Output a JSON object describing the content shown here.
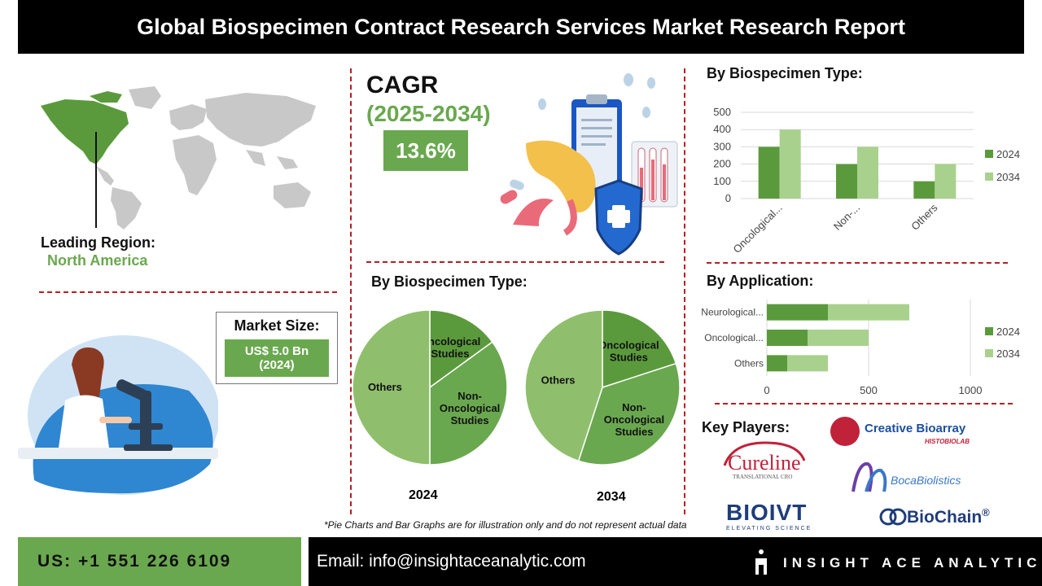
{
  "header": {
    "title": "Global Biospecimen Contract Research Services Market Research Report"
  },
  "region": {
    "label": "Leading Region:",
    "value": "North America"
  },
  "cagr": {
    "title": "CAGR",
    "years": "(2025-2034)",
    "value": "13.6%"
  },
  "market_size": {
    "title": "Market Size:",
    "value_line1": "US$ 5.0 Bn",
    "value_line2": "(2024)"
  },
  "pie_section": {
    "title": "By Biospecimen Type:",
    "year_left": "2024",
    "year_right": "2034"
  },
  "bar_section": {
    "title": "By Biospecimen Type:"
  },
  "hbar_section": {
    "title": "By Application:"
  },
  "players": {
    "title": "Key Players:",
    "creative": "Creative Bioarray",
    "creative_sub": "HISTOBIOLAB",
    "cureline": "Cureline",
    "cureline_sub": "TRANSLATIONAL CRO",
    "boca": "BocaBiolistics",
    "bioivt": "BIOIVT",
    "bioivt_sub": "ELEVATING SCIENCE",
    "biochain": "BioChain",
    "biochain_reg": "®"
  },
  "footnote": "*Pie Charts and Bar Graphs are for illustration only and do not represent actual data",
  "footer": {
    "phone": "US: +1 551 226 6109",
    "email": "Email: info@insightaceanalytic.com",
    "brand": "INSIGHT ACE ANALYTIC"
  },
  "colors": {
    "dark_green": "#5b9a3c",
    "light_green": "#a9d18e",
    "mid_green": "#6aa84f",
    "accent_red": "#b42020"
  },
  "chart_data": [
    {
      "type": "pie",
      "title": "",
      "year": "2024",
      "labels": [
        "Oncological Studies",
        "Non-Oncological Studies",
        "Others"
      ],
      "values": [
        15,
        35,
        50
      ],
      "colors": [
        "#5b9a3c",
        "#6aa84f",
        "#8fbf6d"
      ]
    },
    {
      "type": "pie",
      "title": "",
      "year": "2034",
      "labels": [
        "Oncological Studies",
        "Non-Oncological Studies",
        "Others"
      ],
      "values": [
        20,
        35,
        45
      ],
      "colors": [
        "#5b9a3c",
        "#6aa84f",
        "#8fbf6d"
      ]
    },
    {
      "type": "bar",
      "title": "",
      "categories": [
        "Oncological...",
        "Non-...",
        "Others"
      ],
      "series": [
        {
          "name": "2024",
          "values": [
            300,
            200,
            100
          ],
          "color": "#5b9a3c"
        },
        {
          "name": "2034",
          "values": [
            400,
            300,
            200
          ],
          "color": "#a9d18e"
        }
      ],
      "ylim": [
        0,
        500
      ],
      "yticks": [
        0,
        100,
        200,
        300,
        400,
        500
      ],
      "grid": true,
      "legend": "right"
    },
    {
      "type": "bar",
      "orientation": "horizontal",
      "title": "",
      "categories": [
        "Neurological...",
        "Oncological...",
        "Others"
      ],
      "series": [
        {
          "name": "2024",
          "values": [
            300,
            200,
            100
          ],
          "color": "#5b9a3c"
        },
        {
          "name": "2034",
          "values": [
            400,
            300,
            200
          ],
          "color": "#a9d18e"
        }
      ],
      "stacked": true,
      "xlim": [
        0,
        1200
      ],
      "xticks": [
        0,
        500,
        1000
      ],
      "grid": true,
      "legend": "right"
    }
  ]
}
